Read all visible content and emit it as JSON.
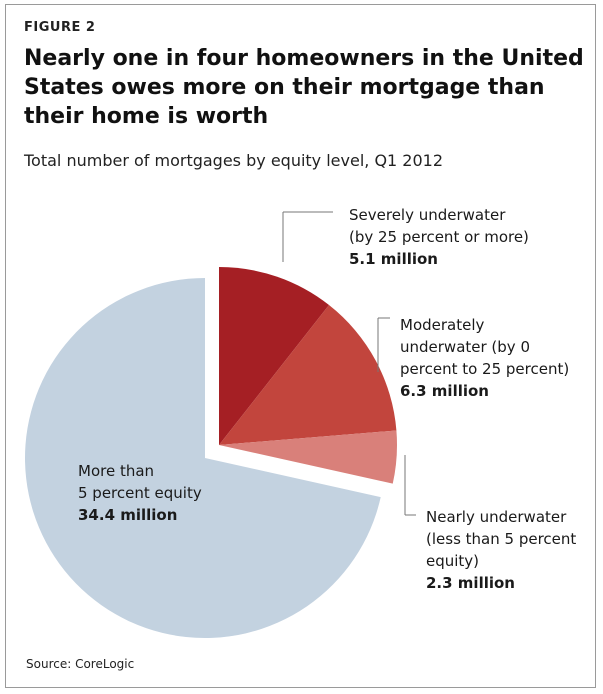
{
  "figure_label": "FIGURE 2",
  "title": "Nearly one in four homeowners in the United States owes more on their mortgage than their home is worth",
  "subtitle": "Total number of mortgages by equity level, Q1 2012",
  "source": "Source: CoreLogic",
  "colors": {
    "severely": "#a51f24",
    "moderately": "#c2453d",
    "nearly": "#d9807a",
    "equity": "#c3d2e0"
  },
  "chart_data": {
    "type": "pie",
    "title": "Nearly one in four homeowners in the United States owes more on their mortgage than their home is worth",
    "subtitle": "Total number of mortgages by equity level, Q1 2012",
    "unit": "million",
    "slices": [
      {
        "key": "severely",
        "label_lines": [
          "Severely underwater",
          "(by 25 percent or more)"
        ],
        "value": 5.1,
        "value_label": "5.1 million"
      },
      {
        "key": "moderately",
        "label_lines": [
          "Moderately",
          "underwater (by 0",
          "percent to 25 percent)"
        ],
        "value": 6.3,
        "value_label": "6.3 million"
      },
      {
        "key": "nearly",
        "label_lines": [
          "Nearly underwater",
          "(less than 5 percent",
          "equity)"
        ],
        "value": 2.3,
        "value_label": "2.3 million"
      },
      {
        "key": "equity",
        "label_lines": [
          "More than",
          "5 percent equity"
        ],
        "value": 34.4,
        "value_label": "34.4 million"
      }
    ]
  }
}
